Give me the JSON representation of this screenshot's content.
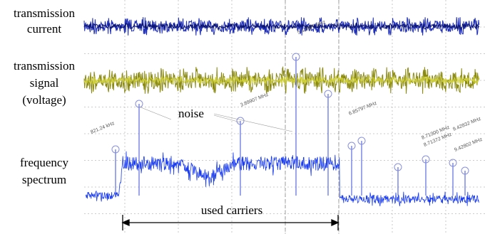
{
  "labels": {
    "current": [
      "transmission",
      "current"
    ],
    "signal": [
      "transmission",
      "signal",
      "(voltage)"
    ],
    "spectrum": [
      "frequency",
      "spectrum"
    ]
  },
  "annotations": {
    "noise": "noise",
    "used_carriers": "used carriers"
  },
  "markers": [
    "821.24 kHz",
    "5.42857 MHz",
    "3.89907 MHz",
    "6.85797 MHz",
    "8.71300 MHz",
    "8.71372 MHz",
    "9.42832 MHz",
    "9.42802 MHz"
  ]
}
